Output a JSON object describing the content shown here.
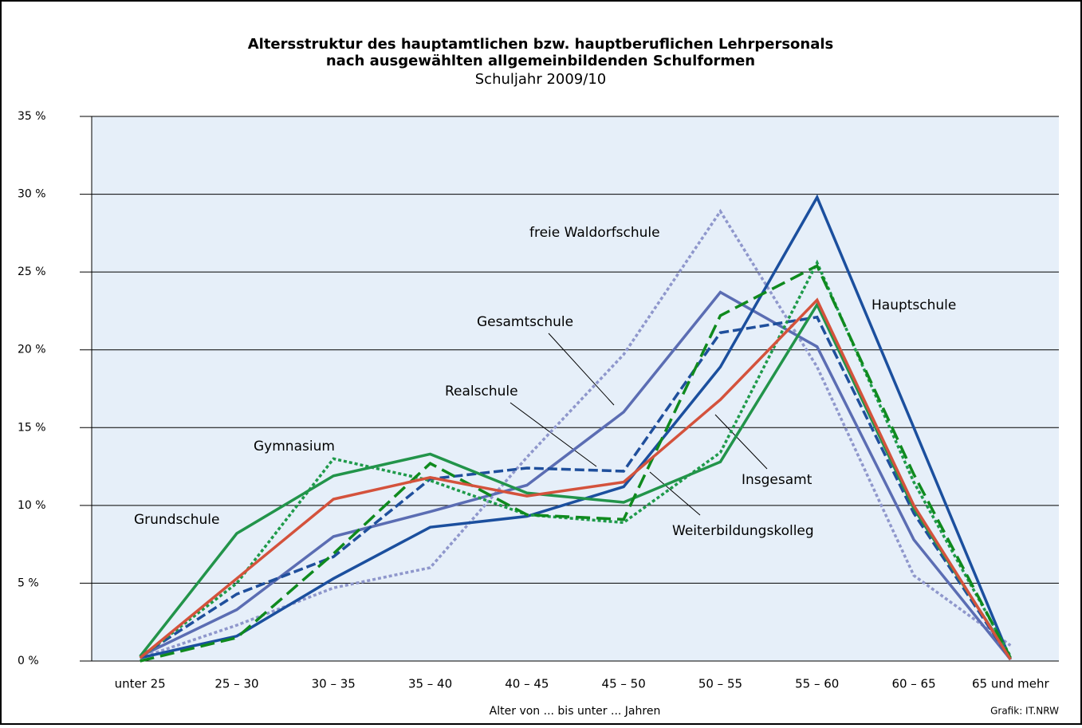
{
  "chart_data": {
    "type": "line",
    "title": [
      "Altersstruktur des hauptamtlichen bzw. hauptberuflichen Lehrpersonals",
      "nach ausgewählten allgemeinbildenden Schulformen"
    ],
    "subtitle": "Schuljahr 2009/10",
    "xlabel": "Alter von ... bis unter ... Jahren",
    "source": "Grafik: IT.NRW",
    "categories": [
      "unter 25",
      "25 – 30",
      "30 – 35",
      "35 – 40",
      "40 – 45",
      "45 – 50",
      "50 – 55",
      "55 – 60",
      "60 – 65",
      "65 und mehr"
    ],
    "ylim": [
      0,
      35
    ],
    "yticks": [
      {
        "value": 0,
        "label": "0 %"
      },
      {
        "value": 5,
        "label": "5 %"
      },
      {
        "value": 10,
        "label": "10 %"
      },
      {
        "value": 15,
        "label": "15 %"
      },
      {
        "value": 20,
        "label": "20 %"
      },
      {
        "value": 25,
        "label": "25 %"
      },
      {
        "value": 30,
        "label": "30 %"
      },
      {
        "value": 35,
        "label": "35 %"
      }
    ],
    "grid": true,
    "series": [
      {
        "name": "freie Waldorfschule",
        "color": "#8f97cc",
        "dash": "dotted",
        "values": [
          0.2,
          2.3,
          4.7,
          6.0,
          13.1,
          19.7,
          28.9,
          18.9,
          5.5,
          1.0
        ]
      },
      {
        "name": "Gesamtschule",
        "color": "#5b6db3",
        "dash": "solid",
        "values": [
          0.3,
          3.3,
          8.0,
          9.6,
          11.3,
          16.0,
          23.7,
          20.2,
          7.8,
          0.1
        ]
      },
      {
        "name": "Realschule",
        "color": "#1f4f9c",
        "dash": "dashed",
        "values": [
          0.3,
          4.3,
          6.7,
          11.7,
          12.4,
          12.2,
          21.1,
          22.1,
          9.5,
          0.1
        ]
      },
      {
        "name": "Hauptschule",
        "color": "#1b4f9e",
        "dash": "solid",
        "values": [
          0.2,
          1.6,
          5.3,
          8.6,
          9.3,
          11.2,
          18.9,
          29.8,
          15.0,
          0.1
        ]
      },
      {
        "name": "Gymnasium",
        "color": "#1e9a4a",
        "dash": "dotted",
        "values": [
          0.2,
          5.0,
          13.0,
          11.6,
          9.4,
          8.9,
          13.4,
          25.6,
          11.5,
          0.3
        ]
      },
      {
        "name": "Grundschule",
        "color": "#22944a",
        "dash": "solid",
        "values": [
          0.3,
          8.2,
          11.9,
          13.3,
          10.8,
          10.2,
          12.8,
          22.9,
          9.8,
          0.2
        ]
      },
      {
        "name": "Weiterbildungskolleg",
        "color": "#0f8a1e",
        "dash": "longdash",
        "values": [
          0.0,
          1.5,
          6.9,
          12.7,
          9.4,
          9.1,
          22.2,
          25.4,
          12.0,
          0.2
        ]
      },
      {
        "name": "Insgesamt",
        "color": "#d4523c",
        "dash": "solid",
        "values": [
          0.2,
          5.3,
          10.4,
          11.8,
          10.6,
          11.5,
          16.8,
          23.2,
          10.0,
          0.1
        ]
      }
    ]
  }
}
